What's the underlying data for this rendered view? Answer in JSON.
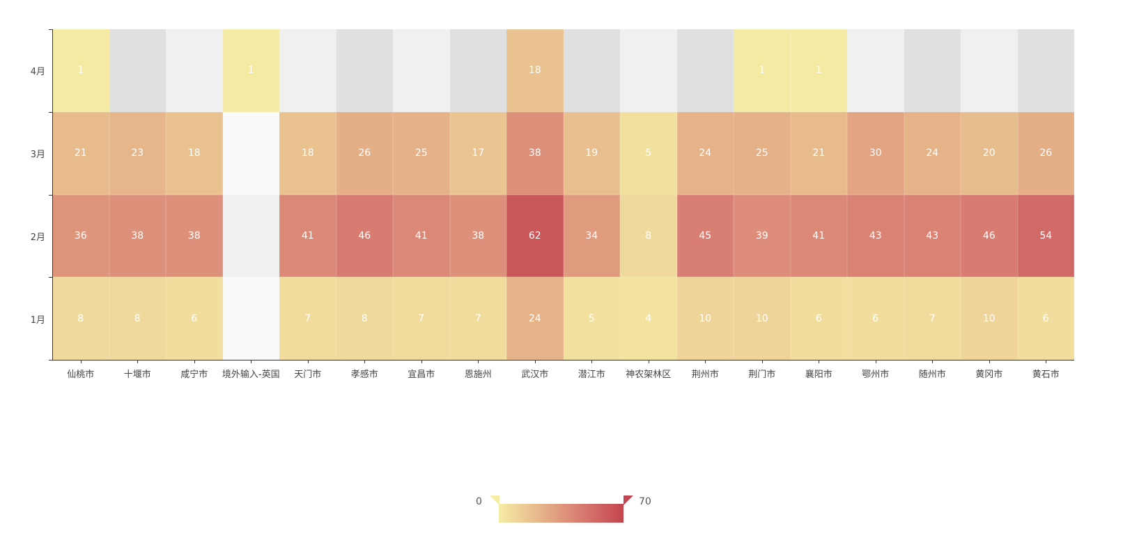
{
  "chart_data": {
    "type": "heatmap",
    "title": "",
    "xlabel": "",
    "ylabel": "",
    "categories": [
      "仙桃市",
      "十堰市",
      "咸宁市",
      "境外输入-英国",
      "天门市",
      "孝感市",
      "宜昌市",
      "恩施州",
      "武汉市",
      "潜江市",
      "神农架林区",
      "荆州市",
      "荆门市",
      "襄阳市",
      "鄂州市",
      "随州市",
      "黄冈市",
      "黄石市"
    ],
    "y_categories": [
      "1月",
      "2月",
      "3月",
      "4月"
    ],
    "series": [
      {
        "name": "1月",
        "values": [
          8,
          8,
          6,
          null,
          7,
          8,
          7,
          7,
          24,
          5,
          4,
          10,
          10,
          6,
          6,
          7,
          10,
          6
        ]
      },
      {
        "name": "2月",
        "values": [
          36,
          38,
          38,
          null,
          41,
          46,
          41,
          38,
          62,
          34,
          8,
          45,
          39,
          41,
          43,
          43,
          46,
          54
        ]
      },
      {
        "name": "3月",
        "values": [
          21,
          23,
          18,
          null,
          18,
          26,
          25,
          17,
          38,
          19,
          5,
          24,
          25,
          21,
          30,
          24,
          20,
          26
        ]
      },
      {
        "name": "4月",
        "values": [
          1,
          null,
          null,
          1,
          null,
          null,
          null,
          null,
          18,
          null,
          null,
          null,
          1,
          1,
          null,
          null,
          null,
          null
        ]
      }
    ],
    "visual_map": {
      "min": 0,
      "max": 70,
      "colors": [
        "#f5eca5",
        "#e6b58a",
        "#d87a70",
        "#c3454f"
      ],
      "min_label": "0",
      "max_label": "70"
    },
    "split_area_colors": [
      "#f0f0f0",
      "#e0e0e0"
    ],
    "empty_cell_color": "#fafafa",
    "grid": false,
    "legend_position": "bottom-center"
  }
}
